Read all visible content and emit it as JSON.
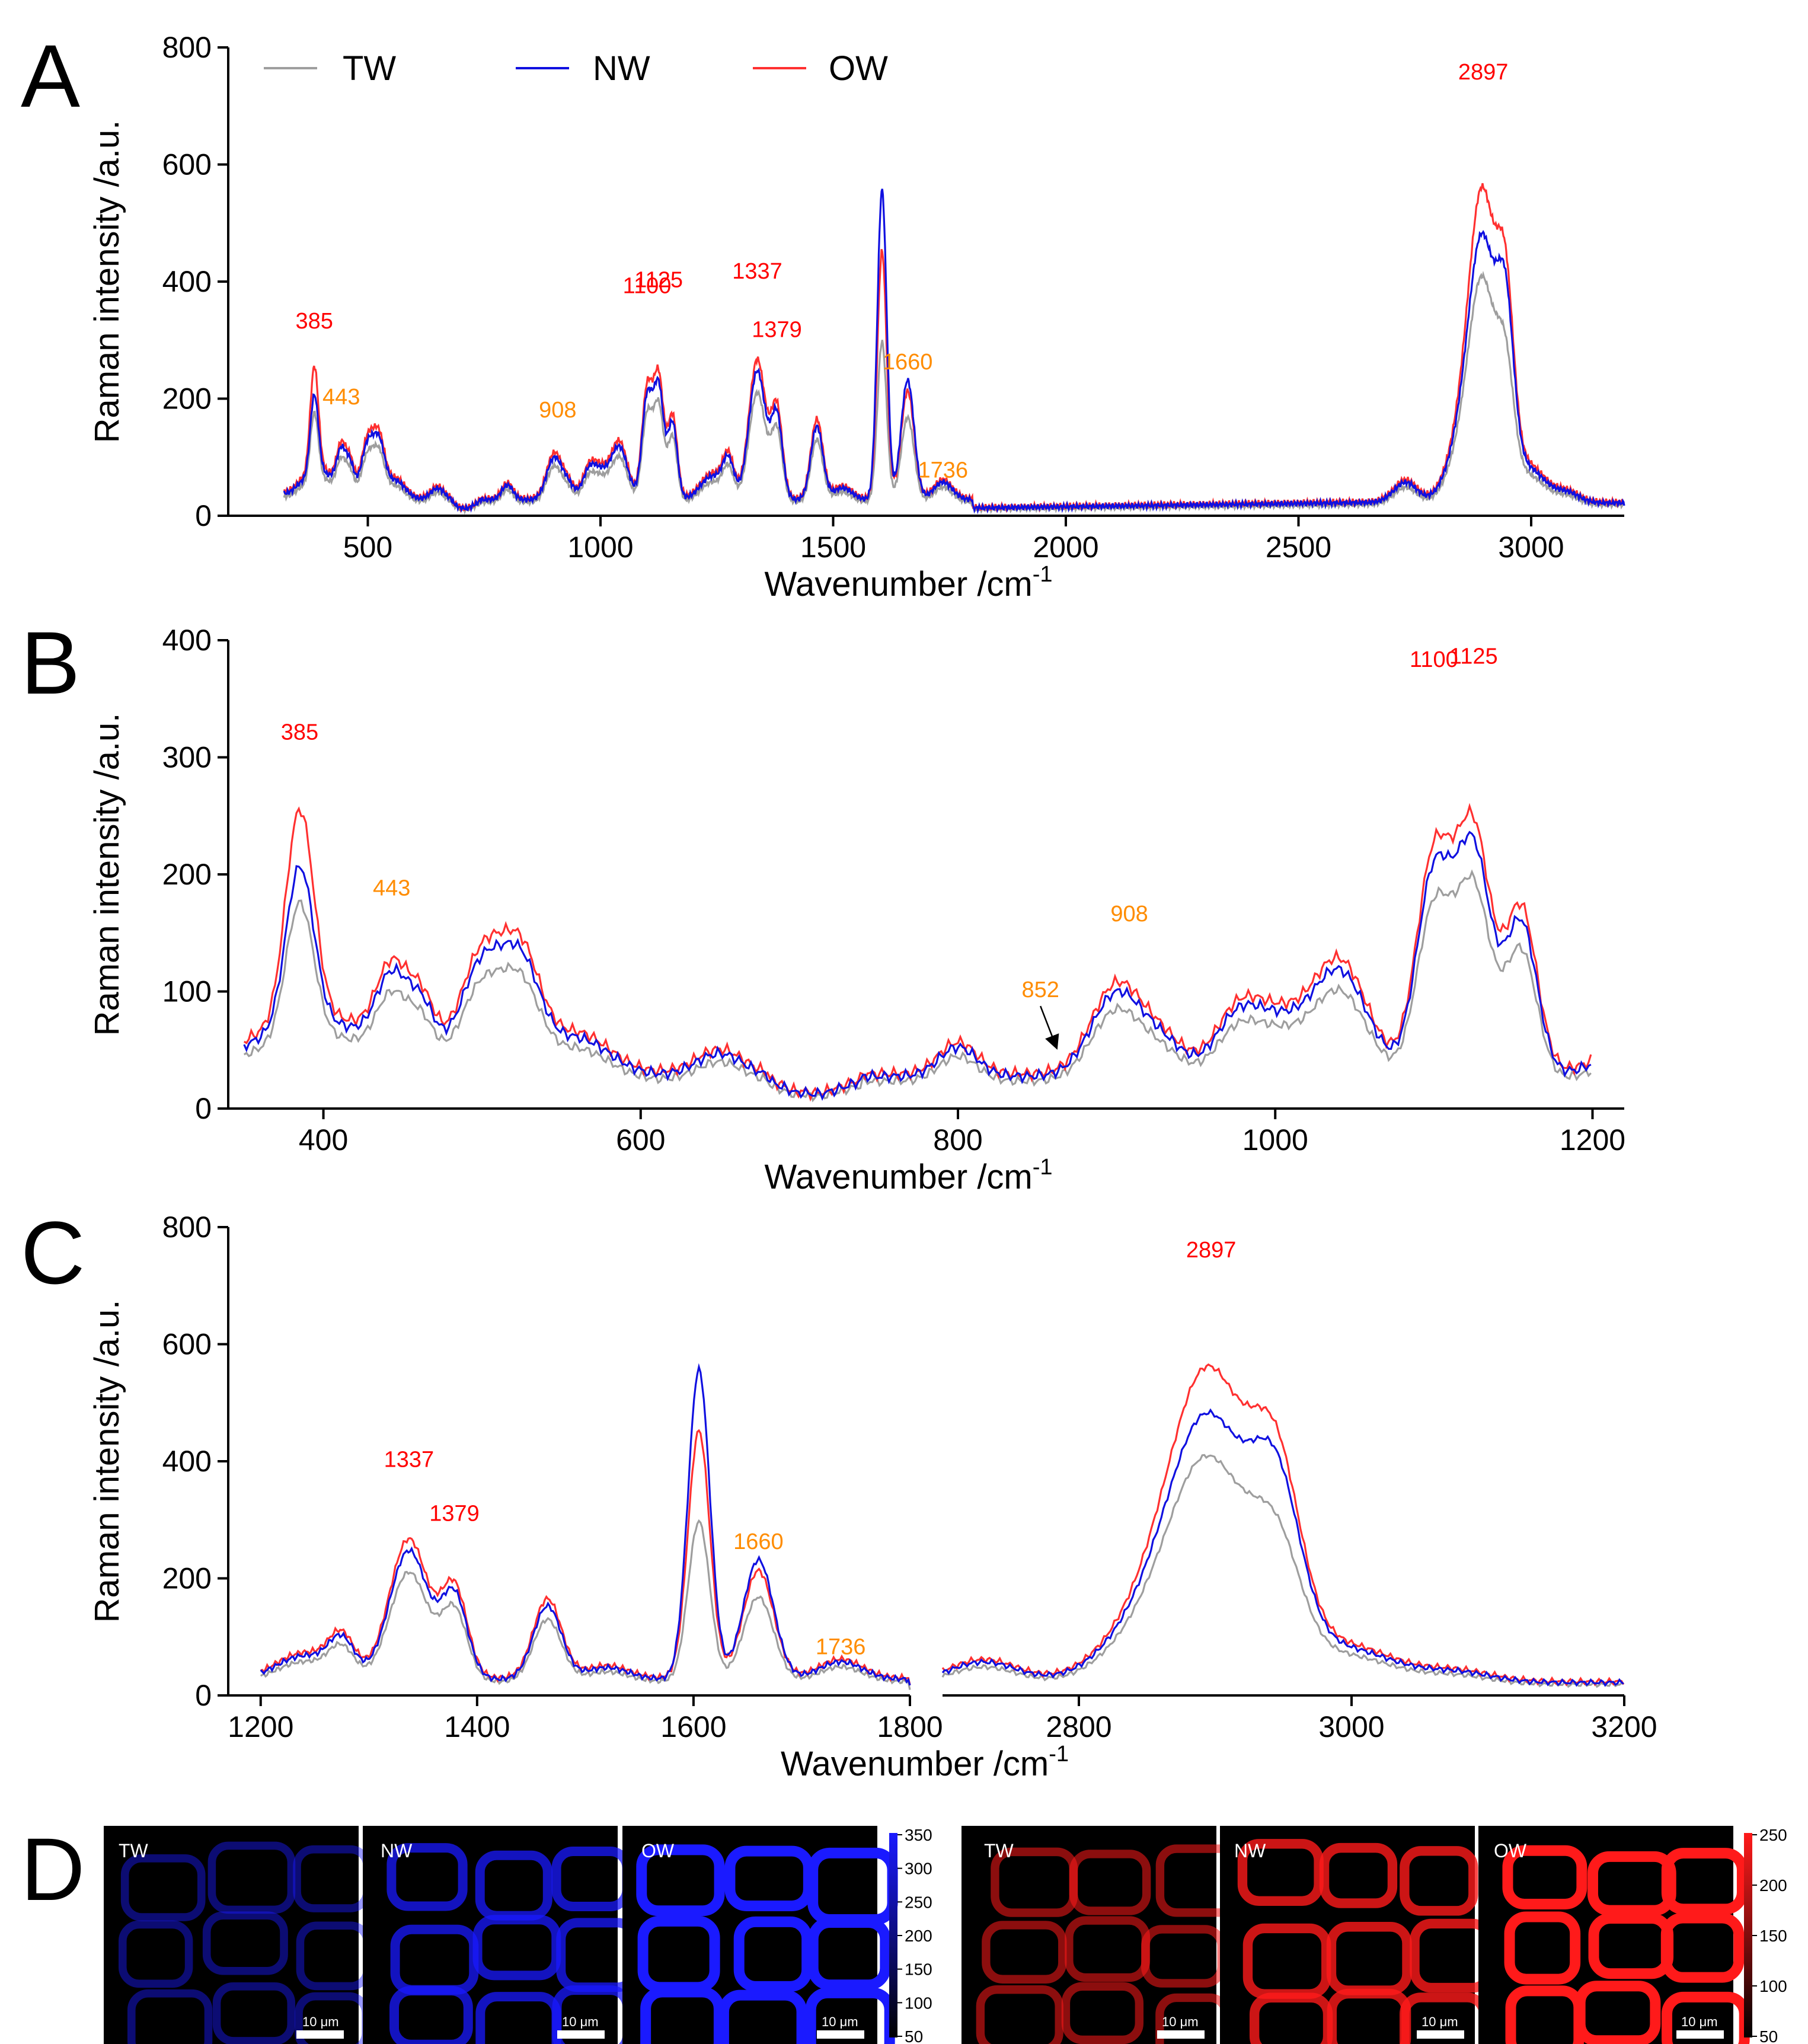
{
  "chart_data": [
    {
      "panel": "A",
      "type": "line",
      "xlabel": "Wavenumber /cm",
      "xlabel_sup": "-1",
      "ylabel": "Raman intensity /a.u.",
      "xlim": [
        200,
        3200
      ],
      "ylim": [
        0,
        800
      ],
      "xticks": [
        500,
        1000,
        1500,
        2000,
        2500,
        3000
      ],
      "yticks": [
        0,
        200,
        400,
        600,
        800
      ],
      "legend": {
        "placement": "top-left",
        "entries": [
          "TW",
          "NW",
          "OW"
        ]
      },
      "series": [
        {
          "name": "TW",
          "color": "#9e9e9e"
        },
        {
          "name": "NW",
          "color": "#1010e0"
        },
        {
          "name": "OW",
          "color": "#ff3030"
        }
      ],
      "annotations": [
        {
          "x": 385,
          "y": 300,
          "text": "385",
          "color": "#ff0000"
        },
        {
          "x": 443,
          "y": 170,
          "text": "443",
          "color": "#ff8c00"
        },
        {
          "x": 908,
          "y": 148,
          "text": "908",
          "color": "#ff8c00"
        },
        {
          "x": 1100,
          "y": 360,
          "text": "1100",
          "color": "#ff0000"
        },
        {
          "x": 1125,
          "y": 370,
          "text": "1125",
          "color": "#ff0000"
        },
        {
          "x": 1337,
          "y": 385,
          "text": "1337",
          "color": "#ff0000"
        },
        {
          "x": 1379,
          "y": 285,
          "text": "1379",
          "color": "#ff0000"
        },
        {
          "x": 1660,
          "y": 230,
          "text": "1660",
          "color": "#ff8c00"
        },
        {
          "x": 1736,
          "y": 45,
          "text": "1736",
          "color": "#ff8c00"
        },
        {
          "x": 2897,
          "y": 725,
          "text": "2897",
          "color": "#ff0000"
        }
      ]
    },
    {
      "panel": "B",
      "type": "line",
      "xlabel": "Wavenumber /cm",
      "xlabel_sup": "-1",
      "ylabel": "Raman intensity /a.u.",
      "xlim": [
        340,
        1220
      ],
      "ylim": [
        0,
        400
      ],
      "xticks": [
        400,
        600,
        800,
        1000,
        1200
      ],
      "yticks": [
        0,
        100,
        200,
        300,
        400
      ],
      "series": [
        {
          "name": "TW",
          "color": "#9e9e9e"
        },
        {
          "name": "NW",
          "color": "#1010e0"
        },
        {
          "name": "OW",
          "color": "#ff3030"
        }
      ],
      "annotations": [
        {
          "x": 385,
          "y": 305,
          "text": "385",
          "color": "#ff0000"
        },
        {
          "x": 443,
          "y": 172,
          "text": "443",
          "color": "#ff8c00"
        },
        {
          "x": 852,
          "y": 85,
          "text": "852",
          "color": "#ff8c00",
          "arrow_to_y": 50
        },
        {
          "x": 908,
          "y": 150,
          "text": "908",
          "color": "#ff8c00"
        },
        {
          "x": 1100,
          "y": 367,
          "text": "1100",
          "color": "#ff0000"
        },
        {
          "x": 1125,
          "y": 370,
          "text": "1125",
          "color": "#ff0000"
        }
      ]
    },
    {
      "panel": "C",
      "type": "line",
      "xlabel": "Wavenumber /cm",
      "xlabel_sup": "-1",
      "ylabel": "Raman intensity /a.u.",
      "broken_axis": true,
      "xlim_left": [
        1170,
        1800
      ],
      "xlim_right": [
        2700,
        3200
      ],
      "ylim": [
        0,
        800
      ],
      "xticks_left": [
        1200,
        1400,
        1600,
        1800
      ],
      "xticks_right": [
        2800,
        3000,
        3200
      ],
      "yticks": [
        0,
        200,
        400,
        600,
        800
      ],
      "series": [
        {
          "name": "TW",
          "color": "#9e9e9e"
        },
        {
          "name": "NW",
          "color": "#1010e0"
        },
        {
          "name": "OW",
          "color": "#ff3030"
        }
      ],
      "annotations": [
        {
          "x": 1337,
          "y": 370,
          "text": "1337",
          "color": "#ff0000"
        },
        {
          "x": 1379,
          "y": 278,
          "text": "1379",
          "color": "#ff0000"
        },
        {
          "x": 1660,
          "y": 230,
          "text": "1660",
          "color": "#ff8c00"
        },
        {
          "x": 1736,
          "y": 50,
          "text": "1736",
          "color": "#ff8c00"
        },
        {
          "x": 2897,
          "y": 728,
          "text": "2897",
          "color": "#ff0000"
        }
      ]
    }
  ],
  "panels": {
    "a": "A",
    "b": "B",
    "c": "C",
    "d": "D"
  },
  "images": {
    "blue_labels": [
      "TW",
      "NW",
      "OW"
    ],
    "red_labels": [
      "TW",
      "NW",
      "OW"
    ],
    "scale_bar": "10 μm",
    "blue_colorbar": [
      "350",
      "300",
      "250",
      "200",
      "150",
      "100",
      "50"
    ],
    "red_colorbar": [
      "250",
      "200",
      "150",
      "100",
      "50"
    ],
    "blue_color": "#1a1aff",
    "red_color": "#ff1a1a"
  }
}
